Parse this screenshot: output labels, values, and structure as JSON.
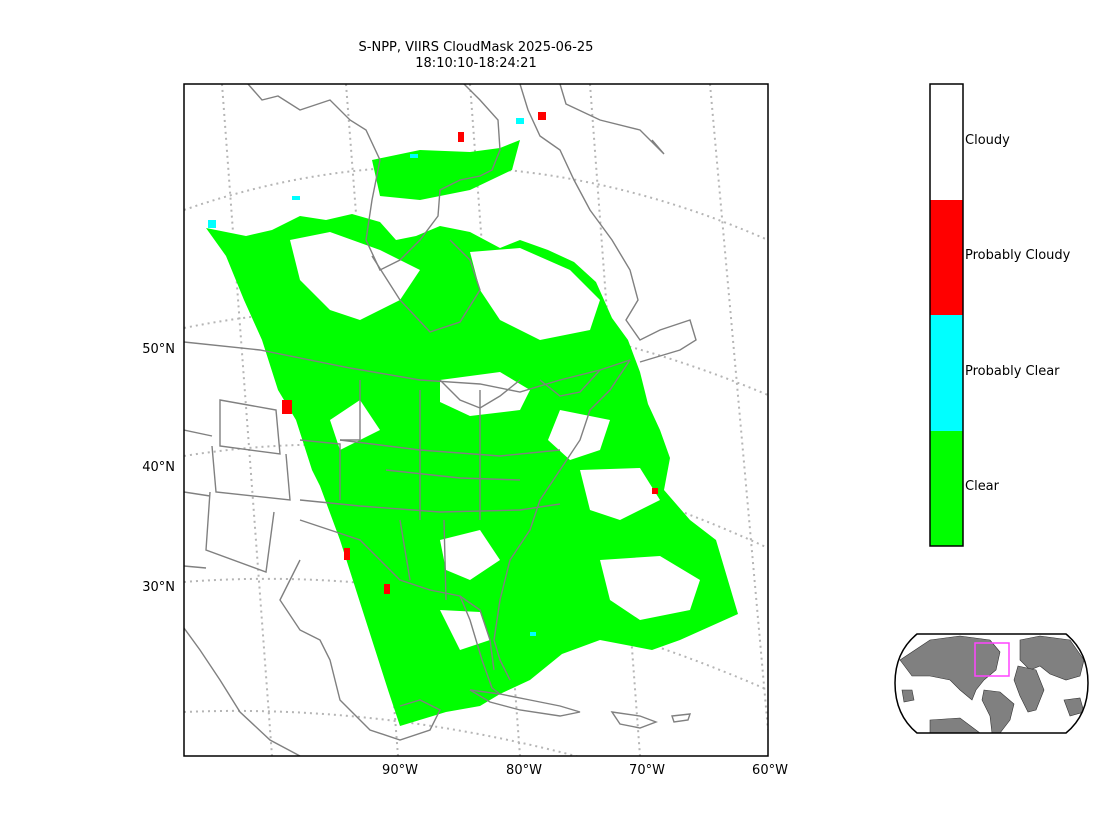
{
  "title": {
    "line1": "S-NPP, VIIRS CloudMask 2025-06-25",
    "line2": "18:10:10-18:24:21"
  },
  "map": {
    "lat_labels": [
      "50°N",
      "40°N",
      "30°N"
    ],
    "lon_labels": [
      "90°W",
      "80°W",
      "70°W",
      "60°W"
    ],
    "coastline_color": "#808080",
    "graticule_color": "#b5b5b5",
    "overview_region_color": "#ff44ff"
  },
  "legend": {
    "categories": [
      {
        "label": "Cloudy",
        "color": "#ffffff"
      },
      {
        "label": "Probably Cloudy",
        "color": "#ff0000"
      },
      {
        "label": "Probably Clear",
        "color": "#00ffff"
      },
      {
        "label": "Clear",
        "color": "#00ff00"
      }
    ]
  }
}
